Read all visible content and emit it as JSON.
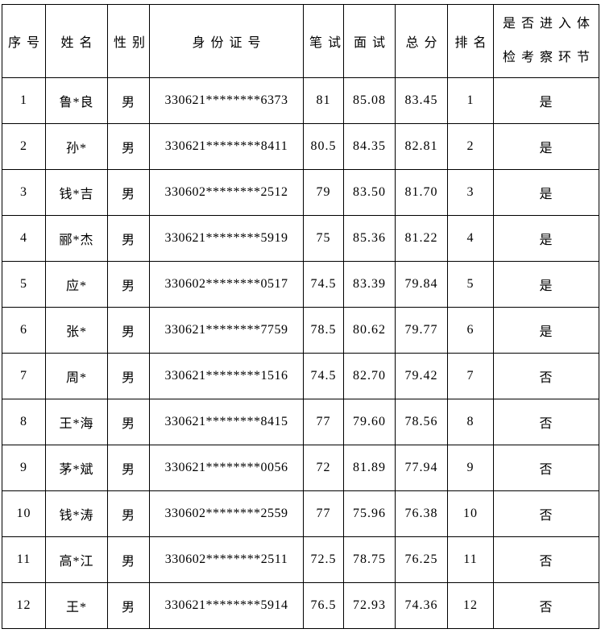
{
  "colors": {
    "background": "#ffffff",
    "border": "#000000",
    "text": "#000000"
  },
  "table": {
    "headers": [
      {
        "key": "index",
        "label": "序号"
      },
      {
        "key": "name",
        "label": "姓名"
      },
      {
        "key": "gender",
        "label": "性别"
      },
      {
        "key": "id_number",
        "label": "身份证号"
      },
      {
        "key": "written",
        "label": "笔试"
      },
      {
        "key": "interview",
        "label": "面试"
      },
      {
        "key": "total",
        "label": "总分"
      },
      {
        "key": "rank",
        "label": "排名"
      },
      {
        "key": "advance",
        "label": "是否进入体检考察环节",
        "lines": [
          "是否进入体",
          "检考察环节"
        ]
      }
    ],
    "rows": [
      [
        "1",
        "鲁*良",
        "男",
        "330621********6373",
        "81",
        "85.08",
        "83.45",
        "1",
        "是"
      ],
      [
        "2",
        "孙*",
        "男",
        "330621********8411",
        "80.5",
        "84.35",
        "82.81",
        "2",
        "是"
      ],
      [
        "3",
        "钱*吉",
        "男",
        "330602********2512",
        "79",
        "83.50",
        "81.70",
        "3",
        "是"
      ],
      [
        "4",
        "郦*杰",
        "男",
        "330621********5919",
        "75",
        "85.36",
        "81.22",
        "4",
        "是"
      ],
      [
        "5",
        "应*",
        "男",
        "330602********0517",
        "74.5",
        "83.39",
        "79.84",
        "5",
        "是"
      ],
      [
        "6",
        "张*",
        "男",
        "330621********7759",
        "78.5",
        "80.62",
        "79.77",
        "6",
        "是"
      ],
      [
        "7",
        "周*",
        "男",
        "330621********1516",
        "74.5",
        "82.70",
        "79.42",
        "7",
        "否"
      ],
      [
        "8",
        "王*海",
        "男",
        "330621********8415",
        "77",
        "79.60",
        "78.56",
        "8",
        "否"
      ],
      [
        "9",
        "茅*斌",
        "男",
        "330621********0056",
        "72",
        "81.89",
        "77.94",
        "9",
        "否"
      ],
      [
        "10",
        "钱*涛",
        "男",
        "330602********2559",
        "77",
        "75.96",
        "76.38",
        "10",
        "否"
      ],
      [
        "11",
        "高*江",
        "男",
        "330602********2511",
        "72.5",
        "78.75",
        "76.25",
        "11",
        "否"
      ],
      [
        "12",
        "王*",
        "男",
        "330621********5914",
        "76.5",
        "72.93",
        "74.36",
        "12",
        "否"
      ]
    ]
  }
}
